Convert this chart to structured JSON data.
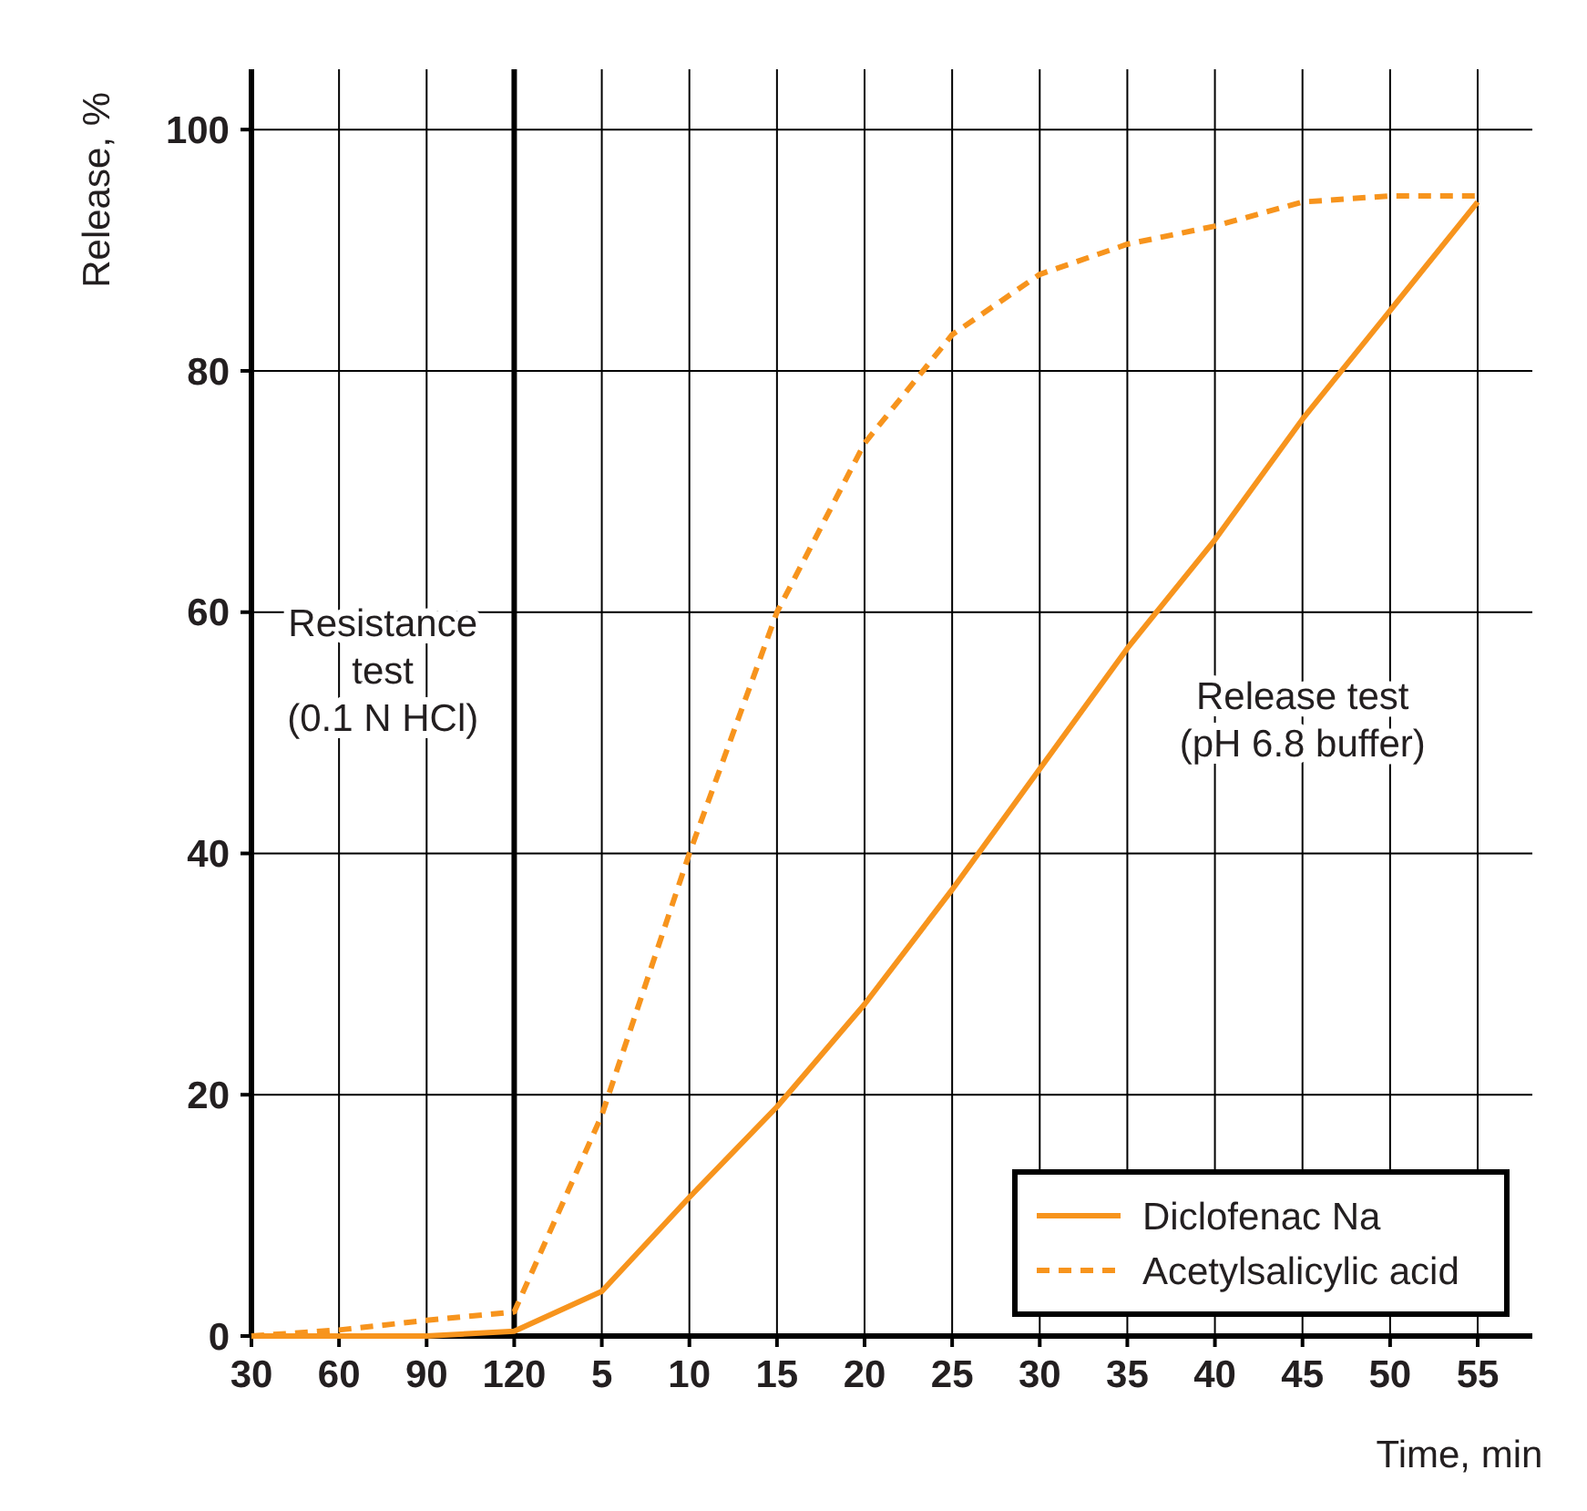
{
  "chart_data": {
    "type": "line",
    "xlabel": "Time, min",
    "ylabel": "Release, %",
    "categories": [
      "30",
      "60",
      "90",
      "120",
      "5",
      "10",
      "15",
      "20",
      "25",
      "30",
      "35",
      "40",
      "45",
      "50",
      "55"
    ],
    "series": [
      {
        "name": "Diclofenac Na",
        "color": "#f7941d",
        "line_style": "solid",
        "values": [
          0,
          0,
          0,
          0.4,
          3.7,
          11.5,
          19,
          27.5,
          37,
          47,
          57,
          66,
          76,
          85,
          94
        ]
      },
      {
        "name": "Acetylsalicylic acid",
        "color": "#f7941d",
        "line_style": "dashed",
        "values": [
          0,
          0.5,
          1.3,
          2,
          18.3,
          40,
          60,
          74,
          83,
          88,
          90.5,
          92,
          94,
          94.5,
          94.5
        ]
      }
    ],
    "ylim": [
      0,
      105
    ],
    "yticks": [
      0,
      20,
      40,
      60,
      80,
      100
    ],
    "grid": true,
    "legend": "bottom right",
    "marker": "none",
    "ref_lines": [
      {
        "axis": "x",
        "value": "120",
        "label": null,
        "color": "#000000"
      }
    ],
    "annotations": [
      "Resistance\ntest\n(0.1 N HCl)",
      "Release test\n(pH 6.8 buffer)"
    ]
  }
}
